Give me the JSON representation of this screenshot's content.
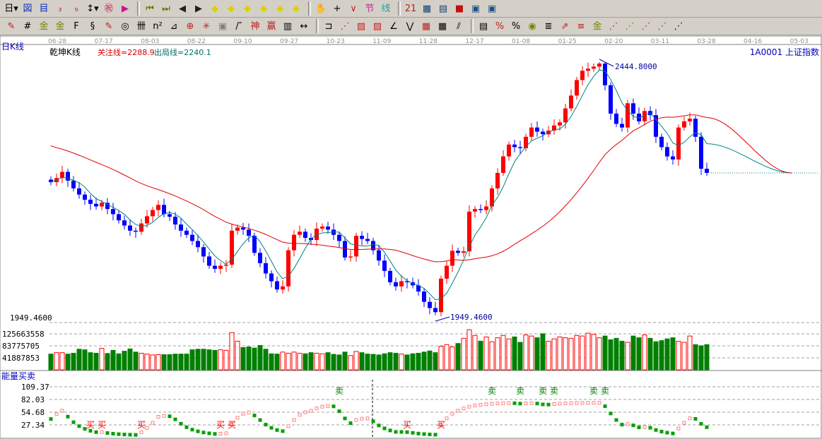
{
  "toolbar1": [
    {
      "icon": "period-day-icon",
      "glyph": "日▾",
      "color": "#000"
    },
    {
      "icon": "overlay-icon",
      "glyph": "図",
      "color": "#1030c0"
    },
    {
      "icon": "notes-icon",
      "glyph": "目",
      "color": "#1030c0"
    },
    {
      "icon": "indicator3-icon",
      "glyph": "₃",
      "color": "#c02090"
    },
    {
      "icon": "indicator9-icon",
      "glyph": "₉",
      "color": "#c02090"
    },
    {
      "icon": "candle-type-icon",
      "glyph": "↕▾",
      "color": "#000"
    },
    {
      "icon": "restore-icon",
      "glyph": "㊗",
      "color": "#c02040"
    },
    {
      "icon": "flag-icon",
      "glyph": "▶",
      "color": "#d0108a"
    },
    {
      "sep": true
    },
    {
      "icon": "first-icon",
      "glyph": "⏮",
      "color": "#707000"
    },
    {
      "icon": "last-icon",
      "glyph": "⏭",
      "color": "#707000"
    },
    {
      "icon": "left-icon",
      "glyph": "◀",
      "color": "#202020"
    },
    {
      "icon": "right-icon",
      "glyph": "▶",
      "color": "#202020"
    },
    {
      "icon": "scroll-left-icon",
      "glyph": "◆",
      "color": "#e0d000"
    },
    {
      "icon": "scroll-right-icon",
      "glyph": "◆",
      "color": "#e0d000"
    },
    {
      "icon": "zoom-in-icon",
      "glyph": "◆",
      "color": "#e0d000"
    },
    {
      "icon": "zoom-out-icon",
      "glyph": "◆",
      "color": "#e0d000"
    },
    {
      "icon": "expand-icon",
      "glyph": "◆",
      "color": "#e0d000"
    },
    {
      "icon": "shrink-icon",
      "glyph": "◆",
      "color": "#e0d000"
    },
    {
      "sep": true
    },
    {
      "icon": "hand-icon",
      "glyph": "✋",
      "color": "#000"
    },
    {
      "icon": "crosshair-icon",
      "glyph": "+",
      "color": "#000"
    },
    {
      "icon": "draw-line-icon",
      "glyph": "∨",
      "color": "#c02020"
    },
    {
      "icon": "section-icon",
      "glyph": "节",
      "color": "#c02090"
    },
    {
      "icon": "line-icon",
      "glyph": "线",
      "color": "#20a0a0"
    },
    {
      "sep": true
    },
    {
      "icon": "calendar-icon",
      "glyph": "21",
      "color": "#c02020"
    },
    {
      "icon": "calculator-icon",
      "glyph": "▦",
      "color": "#104070"
    },
    {
      "icon": "report-icon",
      "glyph": "▤",
      "color": "#104070"
    },
    {
      "icon": "save-icon",
      "glyph": "■",
      "color": "#c01010"
    },
    {
      "icon": "network-icon",
      "glyph": "▣",
      "color": "#205080"
    },
    {
      "icon": "connect-icon",
      "glyph": "▣",
      "color": "#205080"
    }
  ],
  "toolbar2": [
    {
      "icon": "pen-icon",
      "glyph": "✎",
      "color": "#c02020"
    },
    {
      "icon": "grid-icon",
      "glyph": "#",
      "color": "#000"
    },
    {
      "icon": "gold-icon",
      "glyph": "金",
      "color": "#808000"
    },
    {
      "icon": "gold2-icon",
      "glyph": "金",
      "color": "#808000"
    },
    {
      "icon": "fib-icon",
      "glyph": "F",
      "color": "#000"
    },
    {
      "icon": "spiral-icon",
      "glyph": "§",
      "color": "#000"
    },
    {
      "icon": "pen2-icon",
      "glyph": "✎",
      "color": "#c02020"
    },
    {
      "icon": "circle-icon",
      "glyph": "◎",
      "color": "#000"
    },
    {
      "icon": "cycle-icon",
      "glyph": "卌",
      "color": "#000"
    },
    {
      "icon": "square-icon",
      "glyph": "n²",
      "color": "#000"
    },
    {
      "icon": "angle-icon",
      "glyph": "⊿",
      "color": "#000"
    },
    {
      "icon": "target-icon",
      "glyph": "⊕",
      "color": "#c02020"
    },
    {
      "icon": "star-icon",
      "glyph": "✳",
      "color": "#c02020"
    },
    {
      "icon": "box-icon",
      "glyph": "▣",
      "color": "#808080"
    },
    {
      "icon": "slash-icon",
      "glyph": "/″",
      "color": "#000"
    },
    {
      "icon": "god-icon",
      "glyph": "神",
      "color": "#c02020"
    },
    {
      "icon": "gann-icon",
      "glyph": "赢",
      "color": "#c02020"
    },
    {
      "icon": "ruler-icon",
      "glyph": "▥",
      "color": "#000"
    },
    {
      "icon": "width-icon",
      "glyph": "↔",
      "color": "#000"
    },
    {
      "sep": true
    },
    {
      "icon": "bracket-icon",
      "glyph": "⊐",
      "color": "#000"
    },
    {
      "icon": "fan-icon",
      "glyph": "⋰",
      "color": "#c02020"
    },
    {
      "icon": "fan2-icon",
      "glyph": "▧",
      "color": "#c02020"
    },
    {
      "icon": "fan3-icon",
      "glyph": "▨",
      "color": "#c02020"
    },
    {
      "icon": "angle2-icon",
      "glyph": "∠",
      "color": "#000"
    },
    {
      "icon": "wave-icon",
      "glyph": "⋁",
      "color": "#000"
    },
    {
      "icon": "matrix-icon",
      "glyph": "▦",
      "color": "#c02020"
    },
    {
      "icon": "matrix2-icon",
      "glyph": "▦",
      "color": "#000"
    },
    {
      "icon": "parallel-icon",
      "glyph": "⫽",
      "color": "#000"
    },
    {
      "sep": true
    },
    {
      "icon": "table-icon",
      "glyph": "▤",
      "color": "#000"
    },
    {
      "icon": "percent-red-icon",
      "glyph": "%",
      "color": "#c02020"
    },
    {
      "icon": "percent-icon",
      "glyph": "%",
      "color": "#000"
    },
    {
      "icon": "coin-icon",
      "glyph": "◉",
      "color": "#808000"
    },
    {
      "icon": "chart-tool-icon",
      "glyph": "≣",
      "color": "#000"
    },
    {
      "icon": "arrow-tool-icon",
      "glyph": "⇗",
      "color": "#c02020"
    },
    {
      "icon": "price-icon",
      "glyph": "≡",
      "color": "#c02020"
    },
    {
      "icon": "gold3-icon",
      "glyph": "金",
      "color": "#808000"
    },
    {
      "icon": "fan4-icon",
      "glyph": "⋰",
      "color": "#c02020"
    },
    {
      "icon": "fan5-icon",
      "glyph": "⋰",
      "color": "#808000"
    },
    {
      "icon": "fan6-icon",
      "glyph": "⋰",
      "color": "#c02020"
    },
    {
      "icon": "fan7-icon",
      "glyph": "⋰",
      "color": "#c02020"
    },
    {
      "icon": "fan8-icon",
      "glyph": "⋰",
      "color": "#000"
    }
  ],
  "header": {
    "period_label": "日K线",
    "indicator_name": "乾坤K线",
    "focus_line": "关注线=2288.9",
    "exit_line": "出局线=2240.1",
    "symbol": "1A0001",
    "symbol_name": "上证指数"
  },
  "colors": {
    "up": "#ff0000",
    "down": "#0000ff",
    "volume_down": "#008000",
    "short_ma": "#008080",
    "long_ma": "#e00000",
    "signal_buy": "#ff0000",
    "signal_sell": "#008000"
  },
  "chart_data": {
    "type": "candlestick",
    "date_ticks": [
      "06-28",
      "07-17",
      "08-03",
      "08-22",
      "09-10",
      "09-27",
      "10-23",
      "11-09",
      "11-28",
      "12-17",
      "01-08",
      "01-25",
      "02-20",
      "03-11",
      "03-28",
      "04-16",
      "05-03"
    ],
    "high_label": "2444.8000",
    "low_label": "1949.4600",
    "price_range": [
      1949.46,
      2444.8
    ],
    "closes": [
      2212,
      2220,
      2232,
      2215,
      2200,
      2188,
      2178,
      2170,
      2165,
      2172,
      2160,
      2150,
      2138,
      2128,
      2118,
      2116,
      2132,
      2146,
      2158,
      2168,
      2150,
      2145,
      2130,
      2118,
      2110,
      2098,
      2086,
      2068,
      2050,
      2044,
      2050,
      2052,
      2118,
      2124,
      2120,
      2108,
      2075,
      2055,
      2035,
      2020,
      2004,
      2010,
      2080,
      2110,
      2116,
      2104,
      2100,
      2122,
      2126,
      2120,
      2110,
      2098,
      2066,
      2068,
      2108,
      2102,
      2098,
      2080,
      2060,
      2040,
      2018,
      2010,
      2020,
      2018,
      2012,
      2000,
      1980,
      1968,
      1960,
      2025,
      2050,
      2079,
      2075,
      2078,
      2155,
      2160,
      2158,
      2165,
      2200,
      2230,
      2262,
      2285,
      2280,
      2278,
      2300,
      2318,
      2310,
      2305,
      2312,
      2322,
      2328,
      2355,
      2380,
      2410,
      2428,
      2432,
      2436,
      2442,
      2400,
      2345,
      2325,
      2318,
      2365,
      2345,
      2330,
      2350,
      2342,
      2300,
      2280,
      2262,
      2256,
      2318,
      2330,
      2335,
      2300,
      2238,
      2230
    ],
    "volume": {
      "axis_ticks": [
        "125663558",
        "83775705",
        "41887853"
      ],
      "tick_values": [
        125663558,
        83775705,
        41887853
      ],
      "values_millions": [
        55,
        60,
        60,
        55,
        58,
        72,
        70,
        60,
        58,
        75,
        57,
        68,
        56,
        65,
        73,
        62,
        58,
        55,
        52,
        53,
        53,
        53,
        55,
        55,
        55,
        70,
        72,
        72,
        70,
        68,
        70,
        68,
        130,
        100,
        78,
        80,
        76,
        85,
        72,
        56,
        55,
        62,
        58,
        62,
        58,
        56,
        60,
        58,
        56,
        60,
        54,
        52,
        62,
        50,
        64,
        60,
        55,
        54,
        52,
        56,
        60,
        58,
        55,
        52,
        56,
        58,
        62,
        66,
        60,
        82,
        88,
        80,
        92,
        110,
        140,
        120,
        100,
        115,
        98,
        112,
        120,
        108,
        115,
        96,
        122,
        118,
        112,
        126,
        100,
        108,
        115,
        112,
        110,
        120,
        118,
        128,
        124,
        112,
        118,
        105,
        110,
        100,
        96,
        118,
        112,
        122,
        110,
        98,
        102,
        108,
        112,
        100,
        96,
        118,
        88,
        84,
        88
      ]
    },
    "energy": {
      "title": "能量买卖",
      "axis_ticks": [
        "109.37",
        "82.03",
        "54.68",
        "27.34"
      ],
      "tick_values": [
        109.37,
        82.03,
        54.68,
        27.34
      ],
      "signals": [
        {
          "index": 7,
          "label": "买",
          "type": "buy"
        },
        {
          "index": 9,
          "label": "买",
          "type": "buy"
        },
        {
          "index": 16,
          "label": "买",
          "type": "buy"
        },
        {
          "index": 30,
          "label": "买",
          "type": "buy"
        },
        {
          "index": 32,
          "label": "买",
          "type": "buy"
        },
        {
          "index": 63,
          "label": "买",
          "type": "buy"
        },
        {
          "index": 69,
          "label": "买",
          "type": "buy"
        },
        {
          "index": 51,
          "label": "卖",
          "type": "sell"
        },
        {
          "index": 78,
          "label": "卖",
          "type": "sell"
        },
        {
          "index": 83,
          "label": "卖",
          "type": "sell"
        },
        {
          "index": 87,
          "label": "卖",
          "type": "sell"
        },
        {
          "index": 89,
          "label": "卖",
          "type": "sell"
        },
        {
          "index": 96,
          "label": "卖",
          "type": "sell"
        },
        {
          "index": 98,
          "label": "卖",
          "type": "sell"
        }
      ]
    }
  }
}
